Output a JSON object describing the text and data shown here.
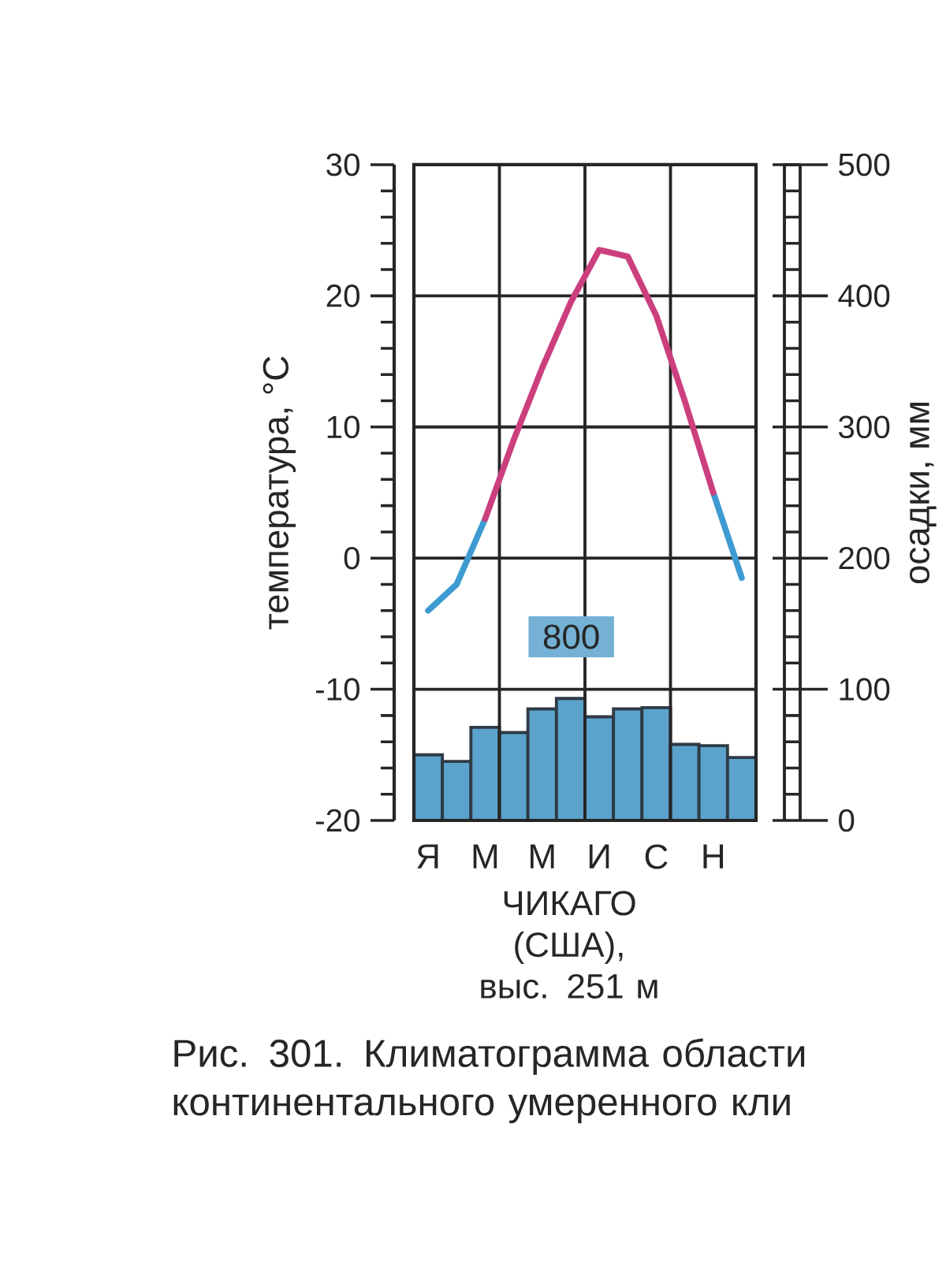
{
  "chart_data": {
    "type": "bar",
    "title": "ЧИКАГО (США), выс. 251 м",
    "ylabel": "температура, °С",
    "y2label": "осадки, мм",
    "annotations": [
      "800",
      "Рис. 301. Климатограмма области континентального умеренного кли"
    ],
    "categories": [
      "Я",
      null,
      "М",
      null,
      "М",
      null,
      "И",
      null,
      "С",
      null,
      "Н",
      null
    ],
    "ylim": [
      -20,
      30
    ],
    "yticks": [
      -20,
      -10,
      0,
      10,
      20,
      30
    ],
    "y2lim": [
      0,
      500
    ],
    "y2ticks": [
      0,
      100,
      200,
      300,
      400,
      500
    ],
    "grid": true,
    "series": [
      {
        "axis": "y2",
        "color": "#5ba3cc",
        "values": [
          50,
          45,
          71,
          67,
          85,
          93,
          79,
          85,
          86,
          58,
          57,
          48
        ]
      },
      {
        "type": "line",
        "color": "#3d9bd1",
        "values": [
          -4,
          -2,
          3,
          null,
          null,
          null,
          null,
          null,
          null,
          null,
          5,
          -1.5
        ]
      },
      {
        "type": "line",
        "color": "#cc3f7f",
        "values": [
          null,
          null,
          3,
          9,
          14.5,
          19.5,
          23.5,
          23,
          18.5,
          12,
          5,
          null
        ]
      }
    ]
  }
}
